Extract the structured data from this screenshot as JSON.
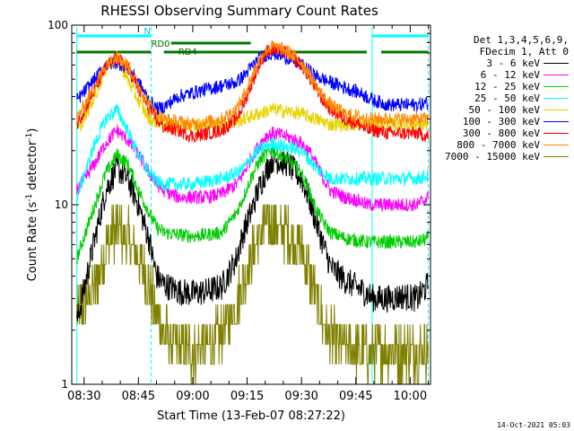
{
  "chart_data": {
    "type": "line",
    "title": "RHESSI Observing Summary Count Rates",
    "xlabel": "Start Time (13-Feb-07 08:27:22)",
    "ylabel": "Count Rate (s⁻¹ detector⁻¹)",
    "ylabel_main": "Count Rate (s",
    "ylabel_sup1": "-1",
    "ylabel_mid": " detector",
    "ylabel_sup2": "-1",
    "ylabel_end": ")",
    "y_scale": "log",
    "ylim": [
      1,
      100
    ],
    "xlim_minutes": [
      -3.4,
      95.6
    ],
    "x_ticks": [
      "08:30",
      "08:45",
      "09:00",
      "09:15",
      "09:30",
      "09:45",
      "10:00"
    ],
    "x_tick_minutes": [
      0,
      15,
      30,
      45,
      60,
      75,
      90
    ],
    "y_tick_labels": [
      "1",
      "10",
      "100"
    ],
    "y_ticks": [
      1,
      10,
      100
    ],
    "grid": false,
    "legend_position": "right",
    "legend_header": [
      "Det 1,3,4,5,6,9,",
      "FDecim 1, Att 0"
    ],
    "annotations": {
      "saa_label": "N",
      "rd0_label": "RD0",
      "rd4_label": "RD4",
      "night_minutes": [
        [
          -2,
          18.5
        ],
        [
          82,
          95
        ]
      ],
      "saa_minutes": [
        [
          -2,
          18.5
        ],
        [
          79.5,
          95
        ]
      ]
    },
    "x": [
      -2,
      3,
      6,
      9,
      12,
      15,
      18,
      20,
      22,
      26,
      30,
      34,
      38,
      42,
      44,
      46,
      48,
      50,
      52,
      56,
      60,
      62,
      64,
      66,
      68,
      72,
      76,
      78,
      80,
      84,
      88,
      92,
      95
    ],
    "series": [
      {
        "name": "3 - 6 keV",
        "color": "#000000",
        "values": [
          2.2,
          6.5,
          12,
          16,
          14,
          10,
          6.3,
          4.0,
          3.6,
          3.3,
          3.2,
          3.3,
          3.5,
          5,
          7,
          9,
          12,
          15,
          18,
          17,
          14,
          11,
          8,
          6,
          4.5,
          3.8,
          3.4,
          3.2,
          3.0,
          3.0,
          3.1,
          3.0,
          3.6
        ]
      },
      {
        "name": "6 - 12 keV",
        "color": "#ff00ff",
        "values": [
          12,
          17,
          22,
          26,
          23,
          19,
          15,
          13,
          12,
          11,
          11,
          11,
          11.5,
          13,
          15,
          18,
          21,
          24,
          25,
          24,
          22,
          20,
          17,
          14,
          12,
          11,
          10.5,
          10,
          10,
          10,
          10,
          10,
          11
        ]
      },
      {
        "name": "12 - 25 keV",
        "color": "#00cc00",
        "values": [
          5,
          10,
          15,
          19,
          17,
          12,
          9,
          7.5,
          7,
          6.8,
          6.7,
          6.8,
          7,
          9,
          11,
          14,
          17,
          19,
          20,
          18,
          15,
          12,
          9.5,
          8,
          7,
          6.5,
          6.3,
          6.2,
          6.2,
          6.2,
          6.2,
          6.2,
          6.5
        ]
      },
      {
        "name": "25 - 50 keV",
        "color": "#00ffff",
        "values": [
          11,
          22,
          30,
          34,
          26,
          19,
          15,
          13.5,
          13,
          13,
          13,
          13.5,
          14,
          15,
          16,
          18,
          20,
          21,
          22,
          21,
          20,
          18,
          16,
          15,
          14,
          14,
          14,
          14,
          14,
          14,
          14,
          14,
          14.5
        ]
      },
      {
        "name": "50 - 100 keV",
        "color": "#e8d200",
        "values": [
          25,
          40,
          58,
          66,
          50,
          38,
          30,
          29,
          28,
          28,
          28,
          28,
          28,
          29,
          30,
          31,
          32,
          33,
          34,
          33,
          32,
          31,
          30,
          29,
          28,
          28,
          28,
          28,
          28,
          28,
          28,
          28,
          28
        ]
      },
      {
        "name": "100 - 300 keV",
        "color": "#0000ff",
        "values": [
          38,
          50,
          60,
          62,
          58,
          48,
          38,
          34,
          35,
          40,
          42,
          44,
          46,
          48,
          52,
          58,
          64,
          68,
          70,
          66,
          60,
          56,
          52,
          50,
          48,
          45,
          42,
          40,
          38,
          36,
          36,
          36,
          37
        ]
      },
      {
        "name": "300 - 800 keV",
        "color": "#ff0000",
        "values": [
          28,
          44,
          58,
          66,
          58,
          44,
          34,
          30,
          27,
          26,
          24,
          25,
          26,
          30,
          36,
          46,
          58,
          70,
          74,
          70,
          60,
          52,
          44,
          38,
          34,
          30,
          28,
          26,
          26,
          25,
          25,
          25,
          24
        ]
      },
      {
        "name": "800 - 7000 keV",
        "color": "#ff8800",
        "values": [
          30,
          46,
          60,
          68,
          60,
          46,
          36,
          32,
          30,
          29,
          28,
          29,
          30,
          34,
          40,
          50,
          62,
          72,
          76,
          72,
          62,
          54,
          46,
          40,
          36,
          32,
          31,
          30,
          30,
          30,
          30,
          30,
          30
        ]
      },
      {
        "name": "7000 - 15000 keV",
        "color": "#808000",
        "values": [
          2.5,
          3.5,
          5.5,
          7.5,
          6.5,
          5,
          3.5,
          2.5,
          1.9,
          1.6,
          1.5,
          1.6,
          1.9,
          2.8,
          3.8,
          5,
          6.5,
          7.5,
          7.8,
          7,
          5.5,
          4.2,
          3,
          2.2,
          1.8,
          1.6,
          1.5,
          1.5,
          1.5,
          1.5,
          1.5,
          1.5,
          1.6
        ]
      }
    ]
  },
  "footer": {
    "timestamp": "14-Oct-2021 05:03"
  }
}
